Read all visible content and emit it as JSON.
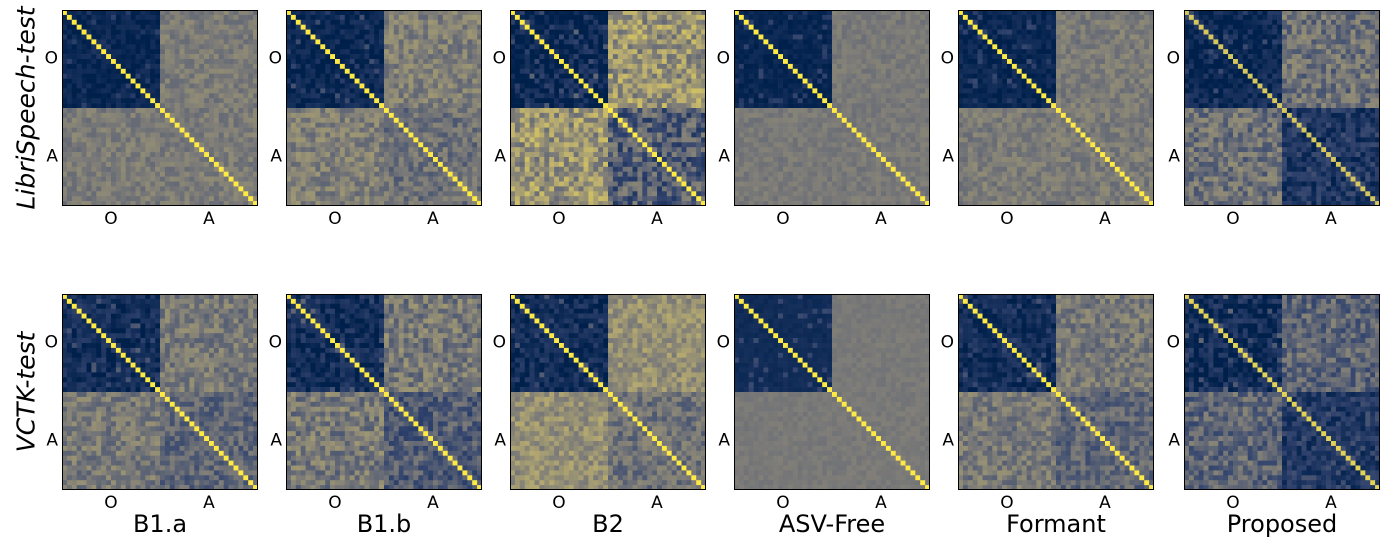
{
  "figure": {
    "rows": [
      {
        "label": "LibriSpeech-test"
      },
      {
        "label": "VCTK-test"
      }
    ],
    "columns": [
      {
        "label": "B1.a"
      },
      {
        "label": "B1.b"
      },
      {
        "label": "B2"
      },
      {
        "label": "ASV-Free"
      },
      {
        "label": "Formant"
      },
      {
        "label": "Proposed"
      }
    ],
    "tick_labels": {
      "first": "O",
      "second": "A"
    },
    "colors": {
      "low": "#00204c",
      "mid": "#7c7b78",
      "high": "#ffe945",
      "frame": "#000000"
    }
  },
  "chart_data": {
    "type": "heatmap",
    "colormap": "cividis",
    "xticks": [
      "O",
      "A"
    ],
    "yticks": [
      "O",
      "A"
    ],
    "row_labels": [
      "LibriSpeech-test",
      "VCTK-test"
    ],
    "column_labels": [
      "B1.a",
      "B1.b",
      "B2",
      "ASV-Free",
      "Formant",
      "Proposed"
    ],
    "grid_size": 40,
    "block_size": 20,
    "block_means": [
      [
        {
          "OO": 0.04,
          "OA": 0.5,
          "AO": 0.5,
          "AA": 0.5,
          "diag": 1.0,
          "noise": 0.08
        },
        {
          "OO": 0.04,
          "OA": 0.52,
          "AO": 0.52,
          "AA": 0.45,
          "diag": 1.0,
          "noise": 0.12
        },
        {
          "OO": 0.04,
          "OA": 0.62,
          "AO": 0.62,
          "AA": 0.35,
          "diag": 1.0,
          "noise": 0.2
        },
        {
          "OO": 0.04,
          "OA": 0.49,
          "AO": 0.49,
          "AA": 0.49,
          "diag": 1.0,
          "noise": 0.05
        },
        {
          "OO": 0.04,
          "OA": 0.5,
          "AO": 0.5,
          "AA": 0.5,
          "diag": 1.0,
          "noise": 0.08
        },
        {
          "OO": 0.04,
          "OA": 0.45,
          "AO": 0.45,
          "AA": 0.15,
          "diag": 0.85,
          "noise": 0.15
        }
      ],
      [
        {
          "OO": 0.08,
          "OA": 0.49,
          "AO": 0.49,
          "AA": 0.4,
          "diag": 1.0,
          "noise": 0.12
        },
        {
          "OO": 0.08,
          "OA": 0.49,
          "AO": 0.49,
          "AA": 0.35,
          "diag": 1.0,
          "noise": 0.15
        },
        {
          "OO": 0.08,
          "OA": 0.6,
          "AO": 0.6,
          "AA": 0.45,
          "diag": 1.0,
          "noise": 0.12
        },
        {
          "OO": 0.08,
          "OA": 0.49,
          "AO": 0.49,
          "AA": 0.49,
          "diag": 1.0,
          "noise": 0.03
        },
        {
          "OO": 0.08,
          "OA": 0.49,
          "AO": 0.49,
          "AA": 0.4,
          "diag": 1.0,
          "noise": 0.12
        },
        {
          "OO": 0.08,
          "OA": 0.4,
          "AO": 0.4,
          "AA": 0.18,
          "diag": 0.9,
          "noise": 0.15
        }
      ]
    ]
  }
}
